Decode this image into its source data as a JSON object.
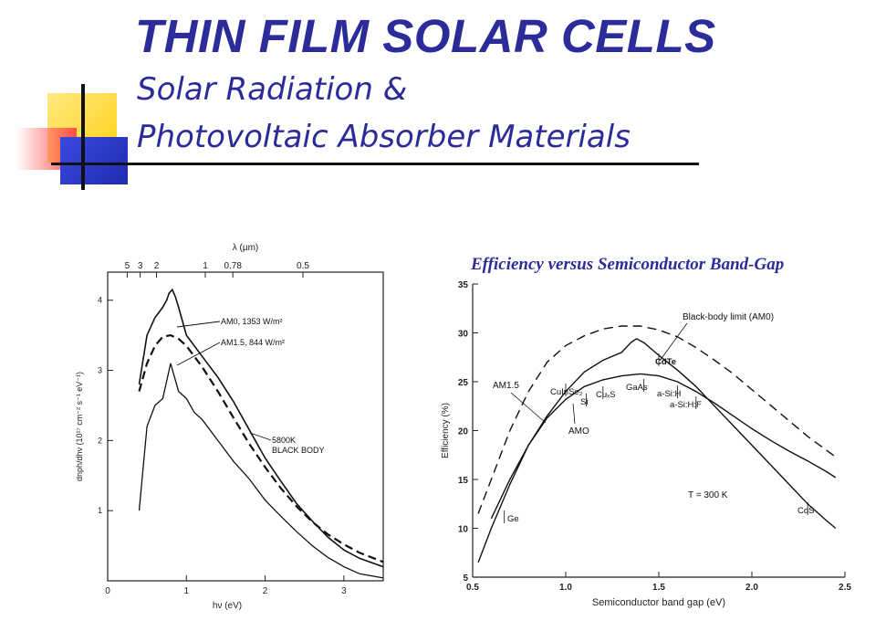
{
  "slide": {
    "title": "THIN FILM SOLAR CELLS",
    "subtitle_line1": "Solar Radiation &",
    "subtitle_line2": "Photovoltaic Absorber Materials",
    "colors": {
      "title": "#2b2b9a",
      "deco_yellow": "#ffd21e",
      "deco_red": "#ff5a5a",
      "deco_blue": "#2b3bd0"
    }
  },
  "chart_data": [
    {
      "type": "line",
      "title": "",
      "xlabel": "hν (eV)",
      "ylabel": "dnph/dhν (10¹⁷ cm⁻² s⁻¹ eV⁻¹)",
      "top_axis_label": "λ (µm)",
      "xlim": [
        0,
        3.5
      ],
      "ylim": [
        0,
        4.4
      ],
      "x_ticks": [
        "0",
        "1",
        "2",
        "3"
      ],
      "y_ticks": [
        "1",
        "2",
        "3",
        "4"
      ],
      "top_ticks": [
        {
          "label": "5",
          "energy": 0.248
        },
        {
          "label": "3",
          "energy": 0.413
        },
        {
          "label": "2",
          "energy": 0.62
        },
        {
          "label": "1",
          "energy": 1.24
        },
        {
          "label": "0.78",
          "energy": 1.59
        },
        {
          "label": "0.5",
          "energy": 2.48
        }
      ],
      "grid": false,
      "series": [
        {
          "name": "AM0, 1353 W/m²",
          "points": [
            [
              0.4,
              2.8
            ],
            [
              0.5,
              3.5
            ],
            [
              0.6,
              3.75
            ],
            [
              0.7,
              3.9
            ],
            [
              0.75,
              4.0
            ],
            [
              0.78,
              4.1
            ],
            [
              0.82,
              4.15
            ],
            [
              0.86,
              4.05
            ],
            [
              0.9,
              3.9
            ],
            [
              1.0,
              3.5
            ],
            [
              1.2,
              3.2
            ],
            [
              1.4,
              2.9
            ],
            [
              1.6,
              2.55
            ],
            [
              1.8,
              2.15
            ],
            [
              2.0,
              1.75
            ],
            [
              2.2,
              1.42
            ],
            [
              2.4,
              1.1
            ],
            [
              2.6,
              0.85
            ],
            [
              2.8,
              0.62
            ],
            [
              3.0,
              0.44
            ],
            [
              3.2,
              0.32
            ],
            [
              3.5,
              0.2
            ]
          ]
        },
        {
          "name": "AM1.5, 844 W/m²",
          "points": [
            [
              0.4,
              1.0
            ],
            [
              0.5,
              2.2
            ],
            [
              0.6,
              2.5
            ],
            [
              0.7,
              2.6
            ],
            [
              0.8,
              3.1
            ],
            [
              0.9,
              2.7
            ],
            [
              1.0,
              2.6
            ],
            [
              1.1,
              2.4
            ],
            [
              1.2,
              2.3
            ],
            [
              1.4,
              2.0
            ],
            [
              1.6,
              1.7
            ],
            [
              1.8,
              1.45
            ],
            [
              2.0,
              1.15
            ],
            [
              2.2,
              0.92
            ],
            [
              2.4,
              0.7
            ],
            [
              2.6,
              0.5
            ],
            [
              2.8,
              0.33
            ],
            [
              3.0,
              0.2
            ],
            [
              3.2,
              0.1
            ],
            [
              3.5,
              0.04
            ]
          ]
        },
        {
          "name": "5800K BLACK BODY",
          "points": [
            [
              0.4,
              2.7
            ],
            [
              0.5,
              3.1
            ],
            [
              0.6,
              3.35
            ],
            [
              0.7,
              3.48
            ],
            [
              0.8,
              3.5
            ],
            [
              0.9,
              3.45
            ],
            [
              1.0,
              3.35
            ],
            [
              1.2,
              3.05
            ],
            [
              1.4,
              2.7
            ],
            [
              1.6,
              2.32
            ],
            [
              1.8,
              1.95
            ],
            [
              2.0,
              1.62
            ],
            [
              2.2,
              1.32
            ],
            [
              2.4,
              1.06
            ],
            [
              2.6,
              0.84
            ],
            [
              2.8,
              0.66
            ],
            [
              3.0,
              0.52
            ],
            [
              3.2,
              0.4
            ],
            [
              3.5,
              0.27
            ]
          ]
        }
      ],
      "annotations": [
        "AM0, 1353 W/m²",
        "AM1.5, 844 W/m²",
        "5800K BLACK BODY"
      ]
    },
    {
      "type": "line",
      "title": "Efficiency versus Semiconductor Band-Gap",
      "xlabel": "Semiconductor band gap (eV)",
      "ylabel": "Efficiency (%)",
      "xlim": [
        0.5,
        2.5
      ],
      "ylim": [
        5,
        35
      ],
      "x_ticks": [
        "0.5",
        "1.0",
        "1.5",
        "2.0",
        "2.5"
      ],
      "y_ticks": [
        "5",
        "10",
        "15",
        "20",
        "25",
        "30",
        "35"
      ],
      "grid": false,
      "series": [
        {
          "name": "Black-body limit (AM0)",
          "dashed": true,
          "points": [
            [
              0.53,
              11.5
            ],
            [
              0.6,
              15
            ],
            [
              0.7,
              20
            ],
            [
              0.8,
              24
            ],
            [
              0.9,
              27
            ],
            [
              1.0,
              28.7
            ],
            [
              1.1,
              29.7
            ],
            [
              1.2,
              30.4
            ],
            [
              1.3,
              30.7
            ],
            [
              1.4,
              30.7
            ],
            [
              1.5,
              30.3
            ],
            [
              1.6,
              29.6
            ],
            [
              1.7,
              28.5
            ],
            [
              1.8,
              27.2
            ],
            [
              1.9,
              25.8
            ],
            [
              2.0,
              24.2
            ],
            [
              2.1,
              22.6
            ],
            [
              2.2,
              21.0
            ],
            [
              2.3,
              19.4
            ],
            [
              2.4,
              18.0
            ],
            [
              2.45,
              17.3
            ]
          ]
        },
        {
          "name": "AM1.5",
          "points": [
            [
              0.53,
              6.5
            ],
            [
              0.6,
              10
            ],
            [
              0.7,
              14.5
            ],
            [
              0.8,
              18.5
            ],
            [
              0.9,
              21.5
            ],
            [
              1.0,
              24.0
            ],
            [
              1.1,
              26.0
            ],
            [
              1.2,
              27.2
            ],
            [
              1.3,
              28.0
            ],
            [
              1.35,
              29.0
            ],
            [
              1.38,
              29.4
            ],
            [
              1.42,
              29.0
            ],
            [
              1.5,
              27.7
            ],
            [
              1.6,
              26.2
            ],
            [
              1.7,
              24.5
            ],
            [
              1.8,
              22.5
            ],
            [
              1.9,
              20.5
            ],
            [
              2.0,
              18.5
            ],
            [
              2.1,
              16.5
            ],
            [
              2.2,
              14.5
            ],
            [
              2.3,
              12.5
            ],
            [
              2.4,
              10.8
            ],
            [
              2.45,
              10.0
            ]
          ]
        },
        {
          "name": "AMO",
          "points": [
            [
              0.6,
              11
            ],
            [
              0.7,
              15
            ],
            [
              0.8,
              18.5
            ],
            [
              0.9,
              21.3
            ],
            [
              1.0,
              23.2
            ],
            [
              1.1,
              24.5
            ],
            [
              1.2,
              25.2
            ],
            [
              1.3,
              25.6
            ],
            [
              1.4,
              25.8
            ],
            [
              1.5,
              25.6
            ],
            [
              1.6,
              25.0
            ],
            [
              1.7,
              24.0
            ],
            [
              1.8,
              22.8
            ],
            [
              1.9,
              21.5
            ],
            [
              2.0,
              20.2
            ],
            [
              2.1,
              19.0
            ],
            [
              2.2,
              17.9
            ],
            [
              2.3,
              16.9
            ],
            [
              2.4,
              15.8
            ],
            [
              2.45,
              15.2
            ]
          ]
        }
      ],
      "curve_labels": [
        "Black-body limit (AM0)",
        "AM1.5",
        "AMO"
      ],
      "material_markers": [
        {
          "label": "Ge",
          "x": 0.67
        },
        {
          "label": "CuInSe₂",
          "x": 1.0
        },
        {
          "label": "Si",
          "x": 1.11
        },
        {
          "label": "CuₓS",
          "x": 1.2
        },
        {
          "label": "GaAs",
          "x": 1.42
        },
        {
          "label": "CdTe",
          "x": 1.5
        },
        {
          "label": "a-Si:H",
          "x": 1.6
        },
        {
          "label": "a-Si:H:F",
          "x": 1.7
        },
        {
          "label": "CdS",
          "x": 2.3
        }
      ],
      "annotation": "T = 300 K"
    }
  ]
}
